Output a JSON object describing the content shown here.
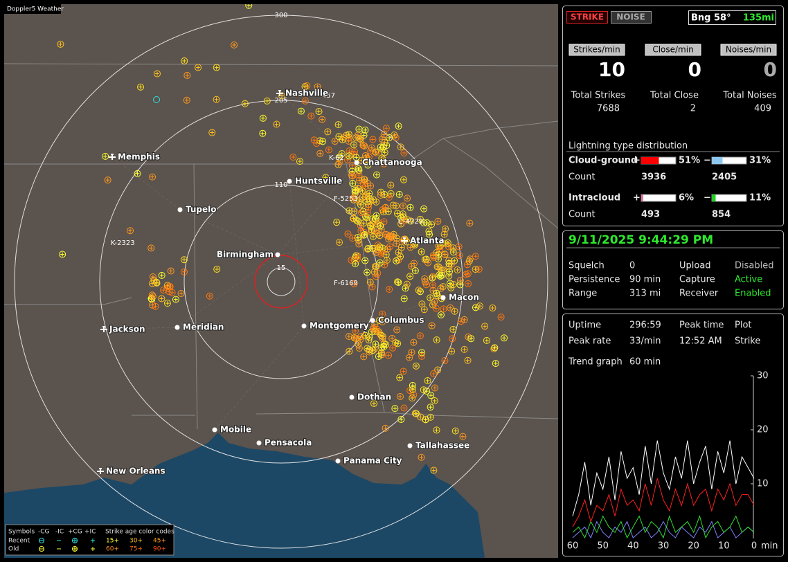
{
  "map": {
    "title": "Doppler5 Weather",
    "range_rings": [
      "300",
      "205",
      "110",
      "15"
    ],
    "cities": [
      {
        "name": "Nashville",
        "airport": true
      },
      {
        "name": "Memphis",
        "airport": true
      },
      {
        "name": "Chattanooga",
        "airport": false
      },
      {
        "name": "Huntsville",
        "airport": false
      },
      {
        "name": "Tupelo",
        "airport": false
      },
      {
        "name": "Birmingham",
        "airport": false
      },
      {
        "name": "Atlanta",
        "airport": true
      },
      {
        "name": "Macon",
        "airport": false
      },
      {
        "name": "Columbus",
        "airport": false
      },
      {
        "name": "Montgomery",
        "airport": false
      },
      {
        "name": "Meridian",
        "airport": false
      },
      {
        "name": "Jackson",
        "airport": true
      },
      {
        "name": "Dothan",
        "airport": false
      },
      {
        "name": "Mobile",
        "airport": false
      },
      {
        "name": "Pensacola",
        "airport": false
      },
      {
        "name": "Tallahassee",
        "airport": false
      },
      {
        "name": "Panama City",
        "airport": false
      },
      {
        "name": "New Orleans",
        "airport": true
      }
    ],
    "strike_tags": [
      "457",
      "K-62",
      "F-5253",
      "C-4729",
      "K-2323",
      "F-6169"
    ],
    "legend": {
      "headers": [
        "Symbols",
        "-CG",
        "-IC",
        "+CG",
        "+IC",
        "Strike age color codes"
      ],
      "rows": [
        {
          "label": "Recent",
          "ages": [
            "15+",
            "30+",
            "45+"
          ]
        },
        {
          "label": "Old",
          "ages": [
            "60+",
            "75+",
            "90+"
          ]
        }
      ]
    }
  },
  "panel": {
    "buttons": [
      "STRIKE",
      "NOISE"
    ],
    "bearing": "Bng 58°",
    "distance": "135mi",
    "rates": [
      {
        "label": "Strikes/min",
        "value": 10,
        "total_label": "Total Strikes",
        "total": 7688
      },
      {
        "label": "Close/min",
        "value": 0,
        "total_label": "Total Close",
        "total": 2
      },
      {
        "label": "Noises/min",
        "value": 0,
        "total_label": "Total Noises",
        "total": 409
      }
    ],
    "distribution": {
      "title": "Lightning type distribution",
      "count_label": "Count",
      "rows": [
        {
          "type": "Cloud-ground",
          "parts": [
            {
              "sign": "+",
              "percent": 51,
              "percent_label": "51%",
              "count": 3936,
              "color": "#ff0000"
            },
            {
              "sign": "−",
              "percent": 31,
              "percent_label": "31%",
              "count": 2405,
              "color": "#8ec8f0"
            }
          ]
        },
        {
          "type": "Intracloud",
          "parts": [
            {
              "sign": "+",
              "percent": 6,
              "percent_label": "6%",
              "count": 493,
              "color": "#e070a0"
            },
            {
              "sign": "−",
              "percent": 11,
              "percent_label": "11%",
              "count": 854,
              "color": "#20d020"
            }
          ]
        }
      ]
    },
    "datetime": "9/11/2025 9:44:29 PM",
    "settings": [
      [
        "Squelch",
        "0",
        "Upload",
        "Disabled"
      ],
      [
        "Persistence",
        "90 min",
        "Capture",
        "Active"
      ],
      [
        "Range",
        "313 mi",
        "Receiver",
        "Enabled"
      ]
    ],
    "stats": [
      [
        "Uptime",
        "296:59",
        "Peak time",
        "Plot"
      ],
      [
        "Peak rate",
        "33/min",
        "12:52 AM",
        "Strike"
      ],
      [
        "Trend graph",
        "60 min"
      ]
    ]
  },
  "chart_data": {
    "type": "line",
    "x_label": "min",
    "x": [
      60,
      58,
      56,
      54,
      52,
      50,
      48,
      46,
      44,
      42,
      40,
      38,
      36,
      34,
      32,
      30,
      28,
      26,
      24,
      22,
      20,
      18,
      16,
      14,
      12,
      10,
      8,
      6,
      4,
      2,
      0
    ],
    "xlim": [
      60,
      0
    ],
    "xticks": [
      60,
      50,
      40,
      30,
      20,
      10,
      0
    ],
    "ylim": [
      0,
      30
    ],
    "yticks": [
      10,
      20,
      30
    ],
    "series": [
      {
        "color": "#ffffff",
        "values": [
          4,
          8,
          14,
          6,
          12,
          9,
          15,
          7,
          16,
          11,
          13,
          8,
          17,
          10,
          18,
          12,
          9,
          15,
          11,
          18,
          10,
          14,
          17,
          9,
          16,
          12,
          18,
          10,
          15,
          13,
          11
        ]
      },
      {
        "color": "#ff2020",
        "values": [
          2,
          4,
          7,
          3,
          6,
          5,
          8,
          4,
          9,
          6,
          7,
          5,
          10,
          6,
          11,
          7,
          5,
          9,
          6,
          10,
          6,
          8,
          9,
          5,
          9,
          7,
          10,
          6,
          8,
          8,
          6
        ]
      },
      {
        "color": "#30e030",
        "values": [
          1,
          2,
          0,
          3,
          1,
          4,
          2,
          1,
          3,
          0,
          2,
          4,
          1,
          3,
          2,
          0,
          4,
          1,
          2,
          3,
          1,
          4,
          0,
          2,
          3,
          1,
          2,
          4,
          1,
          2,
          1
        ]
      },
      {
        "color": "#8080ff",
        "values": [
          0,
          1,
          2,
          0,
          3,
          1,
          0,
          2,
          1,
          3,
          0,
          1,
          2,
          0,
          1,
          3,
          1,
          0,
          2,
          1,
          0,
          2,
          1,
          3,
          0,
          1,
          2,
          0,
          1,
          2,
          1
        ]
      }
    ]
  }
}
